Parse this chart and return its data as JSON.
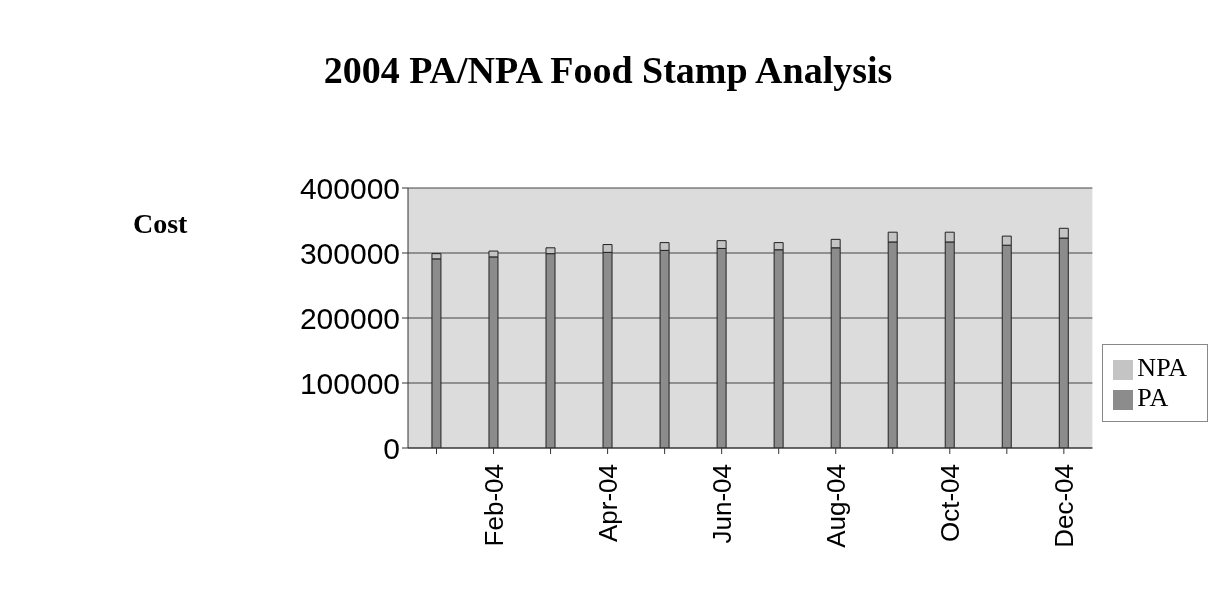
{
  "chart_data": {
    "type": "bar",
    "title": "2004 PA/NPA Food Stamp Analysis",
    "ylabel": "Cost",
    "categories": [
      null,
      "Feb-04",
      null,
      "Apr-04",
      null,
      "Jun-04",
      null,
      "Aug-04",
      null,
      "Oct-04",
      null,
      "Dec-04"
    ],
    "stacked": true,
    "series": [
      {
        "name": "PA",
        "color": "#8c8c8c",
        "values": [
          291000,
          294000,
          299000,
          301000,
          304000,
          307000,
          305000,
          308000,
          317000,
          317000,
          312000,
          323000
        ]
      },
      {
        "name": "NPA",
        "color": "#c4c4c4",
        "values": [
          8000,
          9000,
          9000,
          12000,
          12000,
          12000,
          11000,
          13000,
          15000,
          15000,
          14000,
          15000
        ]
      }
    ],
    "ylim": [
      0,
      400000
    ],
    "yticks": [
      0,
      100000,
      200000,
      300000,
      400000
    ],
    "grid": "y",
    "legend": "right"
  }
}
